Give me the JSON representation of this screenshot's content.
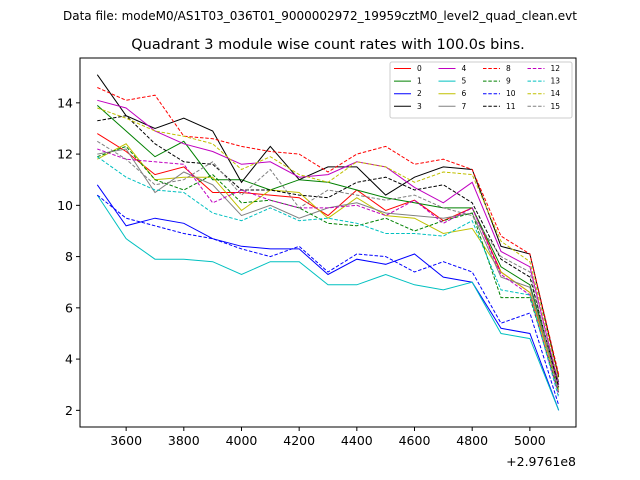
{
  "chart_data": {
    "type": "line",
    "suptitle": "Data file: modeM0/AS1T03_036T01_9000002972_19959cztM0_level2_quad_clean.evt",
    "title": "Quadrant 3 module wise count rates with 100.0s bins.",
    "xlabel": "",
    "ylabel": "",
    "offset_label": "+2.9761e8",
    "xlim": [
      3440,
      5160
    ],
    "ylim": [
      1.35,
      15.75
    ],
    "xticks": [
      3600,
      3800,
      4000,
      4200,
      4400,
      4600,
      4800,
      5000
    ],
    "yticks": [
      2,
      4,
      6,
      8,
      10,
      12,
      14
    ],
    "x": [
      3500,
      3600,
      3700,
      3800,
      3900,
      4000,
      4100,
      4200,
      4300,
      4400,
      4500,
      4600,
      4700,
      4800,
      4900,
      5000,
      5100
    ],
    "legend_position": "top-right",
    "series": [
      {
        "name": "0",
        "color": "#ff0000",
        "dash": "solid",
        "values": [
          12.8,
          12.1,
          11.2,
          11.5,
          10.5,
          10.5,
          10.4,
          10.3,
          9.6,
          10.6,
          9.8,
          10.2,
          9.4,
          9.9,
          7.4,
          6.6,
          3.0
        ]
      },
      {
        "name": "1",
        "color": "#008000",
        "dash": "solid",
        "values": [
          13.9,
          12.9,
          11.9,
          12.5,
          11.0,
          11.0,
          10.6,
          11.0,
          10.9,
          10.6,
          10.3,
          10.1,
          9.9,
          9.9,
          7.6,
          6.9,
          3.1
        ]
      },
      {
        "name": "2",
        "color": "#0000ff",
        "dash": "solid",
        "values": [
          10.8,
          9.2,
          9.5,
          9.3,
          8.7,
          8.4,
          8.3,
          8.3,
          7.3,
          7.9,
          7.7,
          8.1,
          7.2,
          7.0,
          5.2,
          5.0,
          2.0
        ]
      },
      {
        "name": "3",
        "color": "#000000",
        "dash": "solid",
        "values": [
          15.1,
          13.5,
          13.0,
          13.4,
          12.9,
          10.9,
          12.3,
          11.0,
          11.5,
          11.5,
          10.4,
          11.1,
          11.5,
          11.4,
          8.4,
          8.1,
          3.3
        ]
      },
      {
        "name": "4",
        "color": "#c000c0",
        "dash": "solid",
        "values": [
          14.1,
          13.8,
          12.9,
          12.4,
          12.1,
          11.6,
          11.7,
          11.1,
          11.2,
          11.7,
          11.5,
          10.7,
          10.1,
          10.9,
          8.2,
          7.6,
          3.0
        ]
      },
      {
        "name": "5",
        "color": "#00c0c0",
        "dash": "solid",
        "values": [
          10.4,
          8.7,
          7.9,
          7.9,
          7.8,
          7.3,
          7.8,
          7.8,
          6.9,
          6.9,
          7.3,
          6.9,
          6.7,
          7.0,
          5.0,
          4.8,
          2.0
        ]
      },
      {
        "name": "6",
        "color": "#c0c000",
        "dash": "solid",
        "values": [
          11.8,
          12.4,
          11.0,
          11.1,
          11.1,
          9.8,
          10.6,
          10.5,
          9.5,
          10.3,
          9.6,
          9.5,
          8.9,
          9.1,
          7.4,
          6.6,
          2.8
        ]
      },
      {
        "name": "7",
        "color": "#808080",
        "dash": "solid",
        "values": [
          12.0,
          12.2,
          10.5,
          11.3,
          10.8,
          9.6,
          10.0,
          9.5,
          9.9,
          10.1,
          9.7,
          9.6,
          9.5,
          9.7,
          7.2,
          6.8,
          2.9
        ]
      },
      {
        "name": "8",
        "color": "#ff0000",
        "dash": "dashed",
        "values": [
          14.6,
          14.1,
          14.3,
          12.7,
          12.6,
          12.3,
          12.1,
          12.0,
          11.3,
          12.0,
          12.3,
          11.6,
          11.8,
          11.4,
          8.8,
          8.1,
          3.4
        ]
      },
      {
        "name": "9",
        "color": "#008000",
        "dash": "dashed",
        "values": [
          11.9,
          12.3,
          11.0,
          10.6,
          11.2,
          10.1,
          10.2,
          9.9,
          9.3,
          9.2,
          9.5,
          9.0,
          9.4,
          9.7,
          6.4,
          6.4,
          2.7
        ]
      },
      {
        "name": "10",
        "color": "#0000ff",
        "dash": "dashed",
        "values": [
          10.4,
          9.5,
          9.2,
          8.9,
          8.7,
          8.3,
          8.0,
          8.4,
          7.4,
          8.1,
          8.0,
          7.4,
          7.8,
          7.4,
          5.4,
          5.8,
          2.2
        ]
      },
      {
        "name": "11",
        "color": "#000000",
        "dash": "dashed",
        "values": [
          13.3,
          13.5,
          12.4,
          11.7,
          11.6,
          10.6,
          10.6,
          10.4,
          10.3,
          10.9,
          11.1,
          10.6,
          10.8,
          10.1,
          7.9,
          7.2,
          2.9
        ]
      },
      {
        "name": "12",
        "color": "#c000c0",
        "dash": "dashed",
        "values": [
          12.2,
          11.8,
          11.7,
          11.6,
          10.1,
          10.6,
          10.2,
          9.9,
          9.9,
          10.0,
          9.6,
          10.2,
          9.3,
          9.9,
          7.3,
          6.5,
          2.6
        ]
      },
      {
        "name": "13",
        "color": "#00c0c0",
        "dash": "dashed",
        "values": [
          11.9,
          11.1,
          10.6,
          10.5,
          9.7,
          9.4,
          9.9,
          9.4,
          9.5,
          9.3,
          8.9,
          8.9,
          8.8,
          9.4,
          6.7,
          6.5,
          2.5
        ]
      },
      {
        "name": "14",
        "color": "#c0c000",
        "dash": "dashed",
        "values": [
          13.8,
          13.4,
          12.9,
          12.7,
          12.4,
          11.4,
          11.9,
          11.2,
          10.9,
          11.7,
          11.5,
          10.9,
          11.3,
          11.2,
          8.6,
          7.8,
          3.2
        ]
      },
      {
        "name": "15",
        "color": "#808080",
        "dash": "dashed",
        "values": [
          12.5,
          11.8,
          10.8,
          11.0,
          11.7,
          10.4,
          11.4,
          9.9,
          10.6,
          10.4,
          10.2,
          10.4,
          9.9,
          9.6,
          8.0,
          7.4,
          2.7
        ]
      }
    ]
  }
}
